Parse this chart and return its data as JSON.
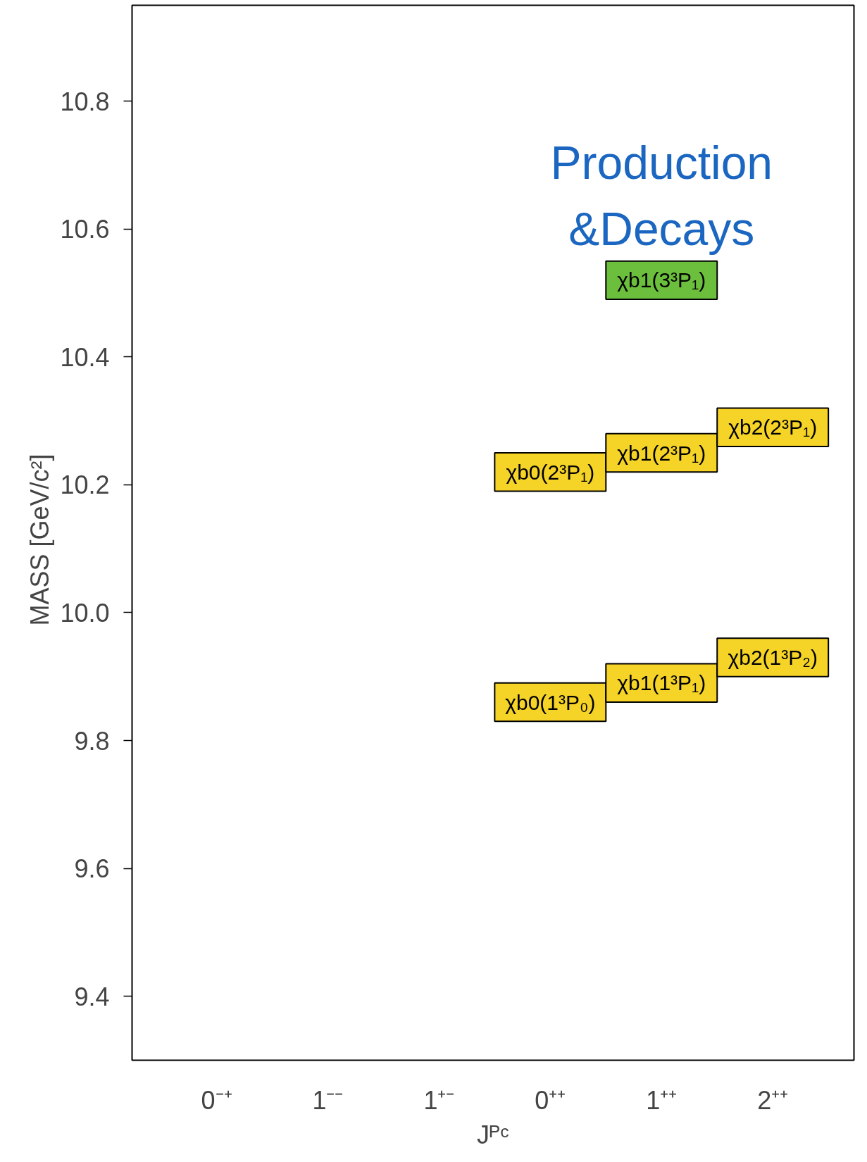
{
  "chart_data": {
    "type": "bar",
    "ylabel": "MASS   [GeV/c²]",
    "xlabel": "Jᴾᶜ",
    "categories": [
      "0⁻⁺",
      "1⁻⁻",
      "1⁺⁻",
      "0⁺⁺",
      "1⁺⁺",
      "2⁺⁺"
    ],
    "series": [
      {
        "color": "#f5d327",
        "values": [
          null,
          null,
          null,
          0.06,
          0.06,
          0.06
        ],
        "base": [
          null,
          null,
          null,
          9.83,
          9.86,
          9.9
        ],
        "value_labels": [
          null,
          null,
          null,
          "χb0(1³P₀)",
          "χb1(1³P₁)",
          "χb2(1³P₂)"
        ]
      },
      {
        "color": "#f5d327",
        "values": [
          null,
          null,
          null,
          0.06,
          0.06,
          0.06
        ],
        "base": [
          null,
          null,
          null,
          10.19,
          10.22,
          10.26
        ],
        "value_labels": [
          null,
          null,
          null,
          "χb0(2³P₁)",
          "χb1(2³P₁)",
          "χb2(2³P₁)"
        ]
      },
      {
        "color": "#6cbf3c",
        "values": [
          null,
          null,
          null,
          null,
          0.06,
          null
        ],
        "base": [
          null,
          null,
          null,
          null,
          10.49,
          null
        ],
        "value_labels": [
          null,
          null,
          null,
          null,
          "χb1(3³P₁)",
          null
        ]
      }
    ],
    "ylim": [
      9.3,
      10.95
    ],
    "yticks": [
      {
        "value": 9.4,
        "label": "9.4"
      },
      {
        "value": 9.6,
        "label": "9.6"
      },
      {
        "value": 9.8,
        "label": "9.8"
      },
      {
        "value": 10.0,
        "label": "10.0"
      },
      {
        "value": 10.2,
        "label": "10.2"
      },
      {
        "value": 10.4,
        "label": "10.4"
      },
      {
        "value": 10.6,
        "label": "10.6"
      },
      {
        "value": 10.8,
        "label": "10.8"
      }
    ],
    "annotations": [
      "Production\n&Decays"
    ],
    "grid": false
  }
}
